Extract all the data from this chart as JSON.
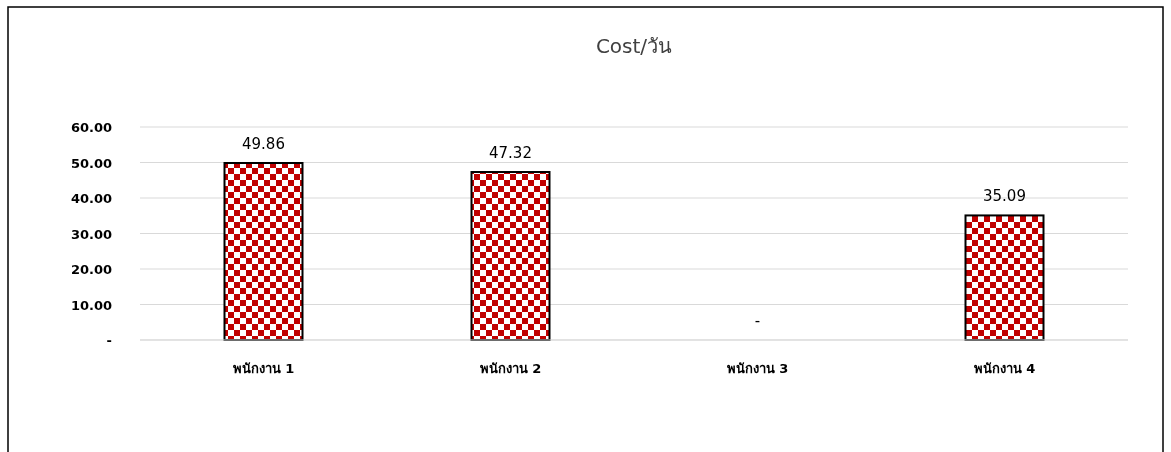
{
  "chart_data": {
    "type": "bar",
    "title": "Cost/วัน",
    "categories": [
      "พนักงาน 1",
      "พนักงาน 2",
      "พนักงาน 3",
      "พนักงาน 4"
    ],
    "values": [
      49.86,
      47.32,
      0,
      35.09
    ],
    "value_labels": [
      "49.86",
      "47.32",
      "-",
      "35.09"
    ],
    "color": "#c00000",
    "ylim": [
      0,
      60
    ],
    "yticks": [
      {
        "value": 0,
        "label": "-"
      },
      {
        "value": 10,
        "label": "10.00"
      },
      {
        "value": 20,
        "label": "20.00"
      },
      {
        "value": 30,
        "label": "30.00"
      },
      {
        "value": 40,
        "label": "40.00"
      },
      {
        "value": 50,
        "label": "50.00"
      },
      {
        "value": 60,
        "label": "60.00"
      }
    ],
    "grid": "y"
  }
}
